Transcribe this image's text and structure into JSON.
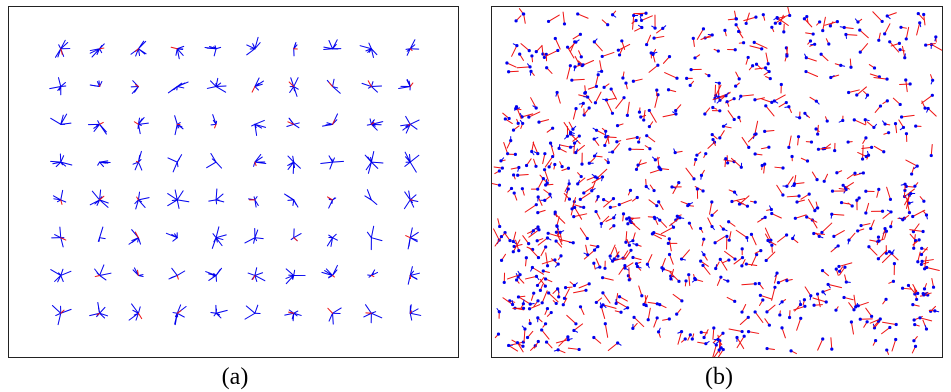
{
  "panels": [
    {
      "id": "a",
      "caption": "(a)",
      "pattern": "regular-grid",
      "grid_columns": 10,
      "grid_rows": 8
    },
    {
      "id": "b",
      "caption": "(b)",
      "pattern": "dense-random"
    }
  ],
  "colors": {
    "primary_vector": "#0000ee",
    "secondary_vector": "#ee1111",
    "frame": "#222222",
    "background": "#ffffff"
  }
}
